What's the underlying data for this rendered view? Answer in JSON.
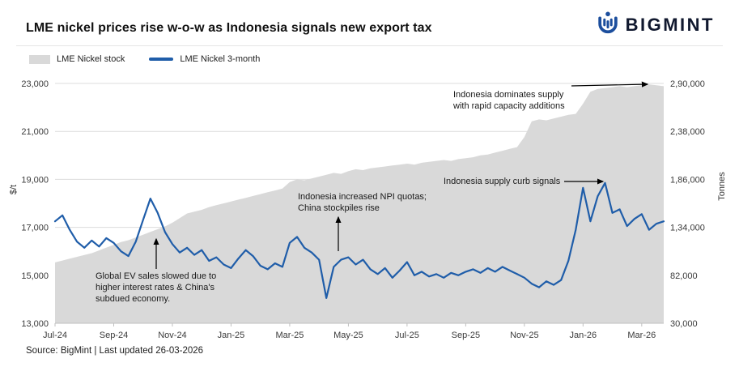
{
  "brand": {
    "name": "BIGMINT"
  },
  "annotations": [
    {
      "text": "Indonesia dominates supply\nwith rapid capacity additions"
    },
    {
      "text": "Indonesia supply curb signals"
    },
    {
      "text": "Indonesia increased NPI quotas;\nChina stockpiles rise"
    },
    {
      "text": "Global EV sales slowed due to\nhigher interest rates & China's\nsubdued economy."
    }
  ],
  "source_note": "Source: BigMint | Last updated 26-03-2026",
  "chart_data": {
    "type": "line",
    "title": "LME nickel prices rise w-o-w as Indonesia signals new export tax",
    "grid": "horizontal",
    "legend_position": "top-left",
    "x_tick_labels": [
      "Jul-24",
      "Sep-24",
      "Nov-24",
      "Jan-25",
      "Mar-25",
      "May-25",
      "Jul-25",
      "Sep-25",
      "Nov-25",
      "Jan-26",
      "Mar-26"
    ],
    "x_tick_indices": [
      0,
      8,
      16,
      24,
      32,
      40,
      48,
      56,
      64,
      72,
      80
    ],
    "left_axis": {
      "label": "$/t",
      "min": 13000,
      "max": 23000,
      "ticks": [
        {
          "value": 13000,
          "label": "13,000"
        },
        {
          "value": 15000,
          "label": "15,000"
        },
        {
          "value": 17000,
          "label": "17,000"
        },
        {
          "value": 19000,
          "label": "19,000"
        },
        {
          "value": 21000,
          "label": "21,000"
        },
        {
          "value": 23000,
          "label": "23,000"
        }
      ]
    },
    "right_axis": {
      "label": "Tonnes",
      "min": 30000,
      "max": 290000,
      "ticks": [
        {
          "value": 30000,
          "label": "30,000"
        },
        {
          "value": 82000,
          "label": "82,000"
        },
        {
          "value": 134000,
          "label": "1,34,000"
        },
        {
          "value": 186000,
          "label": "1,86,000"
        },
        {
          "value": 238000,
          "label": "2,38,000"
        },
        {
          "value": 290000,
          "label": "2,90,000"
        }
      ]
    },
    "series": [
      {
        "name": "LME Nickel stock",
        "type": "area",
        "axis": "right",
        "color": "#d9d9d9",
        "values": [
          96000,
          98000,
          100000,
          102000,
          104000,
          106000,
          109000,
          112000,
          115000,
          118000,
          120000,
          123000,
          126000,
          129000,
          132000,
          135000,
          139000,
          144000,
          149000,
          151000,
          153000,
          156000,
          158000,
          160000,
          162000,
          164000,
          166000,
          168000,
          170000,
          172000,
          174000,
          176000,
          183000,
          186000,
          185000,
          187000,
          189000,
          191000,
          193000,
          192000,
          195000,
          197000,
          196000,
          198000,
          199000,
          200000,
          201000,
          202000,
          203000,
          202000,
          204000,
          205000,
          206000,
          207000,
          206000,
          208000,
          209000,
          210000,
          212000,
          213000,
          215000,
          217000,
          219000,
          221000,
          232000,
          249000,
          251000,
          250000,
          252000,
          254000,
          256000,
          257000,
          268000,
          281000,
          284000,
          285000,
          286000,
          287000,
          286000,
          287000,
          288000,
          289000,
          288000,
          287000
        ]
      },
      {
        "name": "LME Nickel 3-month",
        "type": "line",
        "axis": "left",
        "color": "#1f5da9",
        "values": [
          17250,
          17500,
          16900,
          16400,
          16150,
          16450,
          16200,
          16550,
          16350,
          16000,
          15800,
          16400,
          17300,
          18200,
          17600,
          16800,
          16300,
          15950,
          16150,
          15850,
          16050,
          15600,
          15750,
          15450,
          15300,
          15700,
          16050,
          15800,
          15400,
          15250,
          15500,
          15350,
          16350,
          16600,
          16150,
          15950,
          15650,
          14050,
          15350,
          15650,
          15750,
          15450,
          15650,
          15250,
          15050,
          15300,
          14900,
          15200,
          15550,
          15000,
          15150,
          14950,
          15050,
          14900,
          15100,
          15000,
          15150,
          15250,
          15100,
          15300,
          15150,
          15350,
          15200,
          15050,
          14900,
          14650,
          14500,
          14750,
          14600,
          14800,
          15600,
          16900,
          18650,
          17250,
          18300,
          18850,
          17600,
          17750,
          17050,
          17350,
          17550,
          16900,
          17150,
          17250
        ]
      }
    ],
    "colors": {
      "accent_blue": "#1f5da9",
      "area_gray": "#d9d9d9",
      "gridline": "#dcdcdc"
    }
  }
}
